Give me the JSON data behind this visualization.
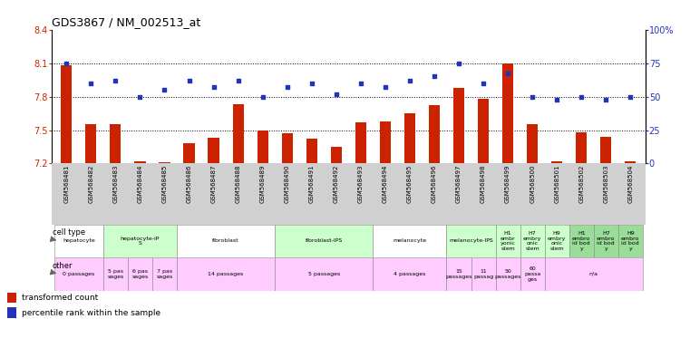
{
  "title": "GDS3867 / NM_002513_at",
  "samples": [
    "GSM568481",
    "GSM568482",
    "GSM568483",
    "GSM568484",
    "GSM568485",
    "GSM568486",
    "GSM568487",
    "GSM568488",
    "GSM568489",
    "GSM568490",
    "GSM568491",
    "GSM568492",
    "GSM568493",
    "GSM568494",
    "GSM568495",
    "GSM568496",
    "GSM568497",
    "GSM568498",
    "GSM568499",
    "GSM568500",
    "GSM568501",
    "GSM568502",
    "GSM568503",
    "GSM568504"
  ],
  "red_values": [
    8.08,
    7.55,
    7.55,
    7.22,
    7.21,
    7.38,
    7.43,
    7.73,
    7.5,
    7.47,
    7.42,
    7.35,
    7.57,
    7.58,
    7.65,
    7.72,
    7.88,
    7.78,
    8.1,
    7.55,
    7.22,
    7.48,
    7.44,
    7.22
  ],
  "blue_values": [
    75,
    60,
    62,
    50,
    55,
    62,
    57,
    62,
    50,
    57,
    60,
    52,
    60,
    57,
    62,
    65,
    75,
    60,
    67,
    50,
    48,
    50,
    48,
    50
  ],
  "ylim": [
    7.2,
    8.4
  ],
  "y2lim": [
    0,
    100
  ],
  "yticks": [
    7.2,
    7.5,
    7.8,
    8.1,
    8.4
  ],
  "y2ticks": [
    0,
    25,
    50,
    75,
    100
  ],
  "ytick_labels": [
    "7.2",
    "7.5",
    "7.8",
    "8.1",
    "8.4"
  ],
  "y2tick_labels": [
    "0",
    "25",
    "50",
    "75",
    "100%"
  ],
  "hlines": [
    7.5,
    7.8,
    8.1
  ],
  "bar_color": "#cc2200",
  "dot_color": "#2233bb",
  "cell_groups": [
    {
      "start": 0,
      "end": 2,
      "color": "#ffffff",
      "label": "hepatocyte"
    },
    {
      "start": 2,
      "end": 5,
      "color": "#ccffcc",
      "label": "hepatocyte-iP\nS"
    },
    {
      "start": 5,
      "end": 9,
      "color": "#ffffff",
      "label": "fibroblast"
    },
    {
      "start": 9,
      "end": 13,
      "color": "#ccffcc",
      "label": "fibroblast-IPS"
    },
    {
      "start": 13,
      "end": 16,
      "color": "#ffffff",
      "label": "melanocyte"
    },
    {
      "start": 16,
      "end": 18,
      "color": "#ccffcc",
      "label": "melanocyte-IPS"
    },
    {
      "start": 18,
      "end": 19,
      "color": "#ccffcc",
      "label": "H1\nembr\nyonic\nstem"
    },
    {
      "start": 19,
      "end": 20,
      "color": "#ccffcc",
      "label": "H7\nembry\nonic\nstem"
    },
    {
      "start": 20,
      "end": 21,
      "color": "#ccffcc",
      "label": "H9\nembry\nonic\nstem"
    },
    {
      "start": 21,
      "end": 22,
      "color": "#99dd99",
      "label": "H1\nembro\nid bod\ny"
    },
    {
      "start": 22,
      "end": 23,
      "color": "#99dd99",
      "label": "H7\nembro\nid bod\ny"
    },
    {
      "start": 23,
      "end": 24,
      "color": "#99dd99",
      "label": "H9\nembro\nid bod\ny"
    }
  ],
  "other_groups": [
    {
      "start": 0,
      "end": 2,
      "color": "#ffccff",
      "label": "0 passages"
    },
    {
      "start": 2,
      "end": 3,
      "color": "#ffccff",
      "label": "5 pas\nsages"
    },
    {
      "start": 3,
      "end": 4,
      "color": "#ffccff",
      "label": "6 pas\nsages"
    },
    {
      "start": 4,
      "end": 5,
      "color": "#ffccff",
      "label": "7 pas\nsages"
    },
    {
      "start": 5,
      "end": 9,
      "color": "#ffccff",
      "label": "14 passages"
    },
    {
      "start": 9,
      "end": 13,
      "color": "#ffccff",
      "label": "5 passages"
    },
    {
      "start": 13,
      "end": 16,
      "color": "#ffccff",
      "label": "4 passages"
    },
    {
      "start": 16,
      "end": 17,
      "color": "#ffccff",
      "label": "15\npassages"
    },
    {
      "start": 17,
      "end": 18,
      "color": "#ffccff",
      "label": "11\npassag"
    },
    {
      "start": 18,
      "end": 19,
      "color": "#ffccff",
      "label": "50\npassages"
    },
    {
      "start": 19,
      "end": 20,
      "color": "#ffccff",
      "label": "60\npassa\nges"
    },
    {
      "start": 20,
      "end": 24,
      "color": "#ffccff",
      "label": "n/a"
    }
  ],
  "sample_bg": "#d0d0d0",
  "title_fontsize": 9,
  "tick_fontsize": 7,
  "label_fontsize": 6,
  "cell_fontsize": 4.5,
  "sample_fontsize": 5
}
